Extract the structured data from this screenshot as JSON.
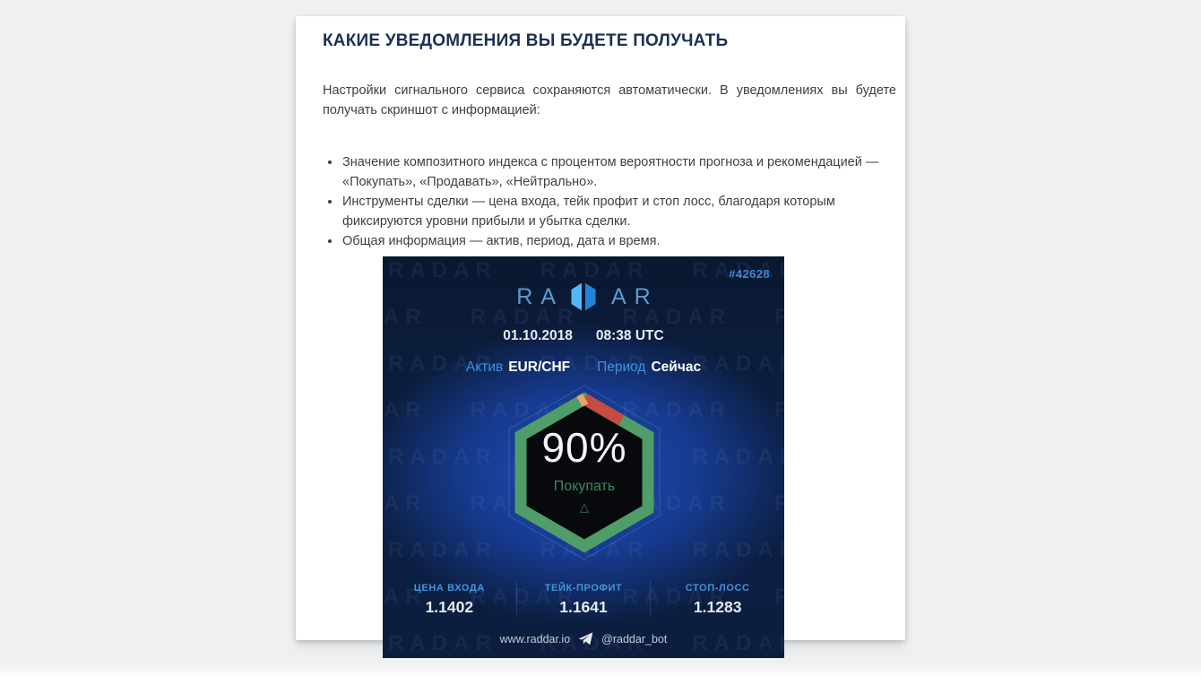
{
  "article": {
    "title": "КАКИЕ УВЕДОМЛЕНИЯ ВЫ БУДЕТЕ ПОЛУЧАТЬ",
    "intro": "Настройки сигнального сервиса сохраняются автоматически. В уведомлениях вы будете получать скриншот с информацией:",
    "bullets": [
      "Значение композитного индекса с процентом вероятности прогноза и рекомендацией — «Покупать», «Продавать», «Нейтрально».",
      "Инструменты сделки — цена входа, тейк профит и стоп лосс, благодаря которым фиксируются уровни прибыли и убытка сделки.",
      "Общая информация — актив, период, дата и время."
    ]
  },
  "signal_card": {
    "id": "#42628",
    "logo": {
      "left": "RA",
      "right": "AR"
    },
    "watermark_text": "RADAR",
    "date": "01.10.2018",
    "time": "08:38 UTC",
    "asset_label": "Актив",
    "asset_value": "EUR/CHF",
    "period_label": "Период",
    "period_value": "Сейчас",
    "gauge": {
      "percent": "90%",
      "recommendation": "Покупать",
      "direction_icon": "△",
      "ring_color": "#4f9d68",
      "sell_color": "#c44c41",
      "neutral_color": "#eba26b"
    },
    "stats": [
      {
        "label": "ЦЕНА ВХОДА",
        "value": "1.1402"
      },
      {
        "label": "ТЕЙК-ПРОФИТ",
        "value": "1.1641"
      },
      {
        "label": "СТОП-ЛОСС",
        "value": "1.1283"
      }
    ],
    "footer": {
      "website": "www.raddar.io",
      "bot": "@raddar_bot"
    },
    "colors": {
      "accent_blue": "#3f93dd",
      "background": "#0d2147"
    }
  }
}
